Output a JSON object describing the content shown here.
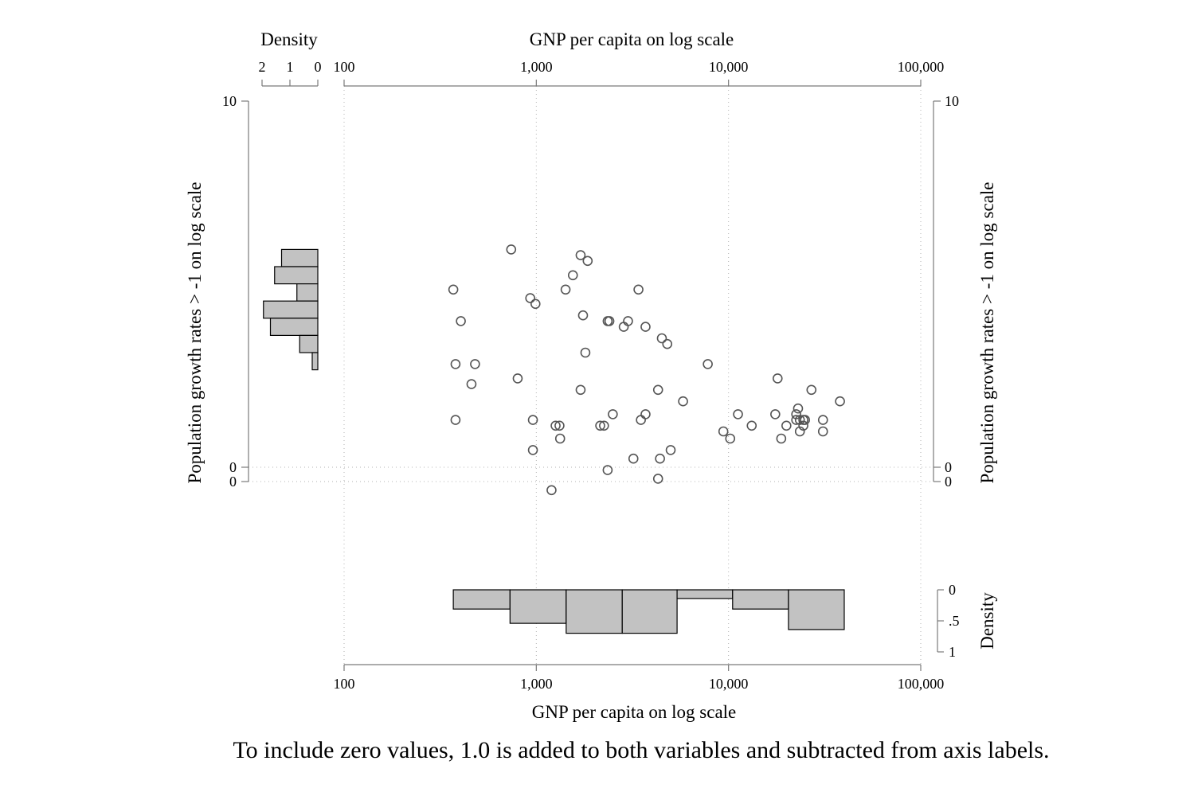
{
  "chart_data": {
    "type": "scatter",
    "x_scale": "log",
    "xlabel": "GNP per capita on log scale",
    "ylabel": "Population growth rates > -1 on log scale",
    "xlim": [
      100,
      100000
    ],
    "x_ticks": [
      100,
      1000,
      10000,
      100000
    ],
    "x_tick_labels": [
      "100",
      "1,000",
      "10,000",
      "100,000"
    ],
    "y_tick_labels": [
      "10",
      "0",
      "0"
    ],
    "points": [
      {
        "x": 740,
        "y": 7.6
      },
      {
        "x": 1700,
        "y": 7.4
      },
      {
        "x": 1850,
        "y": 7.2
      },
      {
        "x": 1550,
        "y": 6.7
      },
      {
        "x": 1420,
        "y": 6.2
      },
      {
        "x": 3400,
        "y": 6.2
      },
      {
        "x": 370,
        "y": 6.2
      },
      {
        "x": 930,
        "y": 5.9
      },
      {
        "x": 990,
        "y": 5.7
      },
      {
        "x": 1750,
        "y": 5.3
      },
      {
        "x": 405,
        "y": 5.1
      },
      {
        "x": 2350,
        "y": 5.1
      },
      {
        "x": 2400,
        "y": 5.1
      },
      {
        "x": 3000,
        "y": 5.1
      },
      {
        "x": 2850,
        "y": 4.9
      },
      {
        "x": 3700,
        "y": 4.9
      },
      {
        "x": 4500,
        "y": 4.5
      },
      {
        "x": 4800,
        "y": 4.3
      },
      {
        "x": 1800,
        "y": 4.0
      },
      {
        "x": 380,
        "y": 3.6
      },
      {
        "x": 480,
        "y": 3.6
      },
      {
        "x": 7800,
        "y": 3.6
      },
      {
        "x": 800,
        "y": 3.1
      },
      {
        "x": 18000,
        "y": 3.1
      },
      {
        "x": 460,
        "y": 2.9
      },
      {
        "x": 1700,
        "y": 2.7
      },
      {
        "x": 4300,
        "y": 2.7
      },
      {
        "x": 27000,
        "y": 2.7
      },
      {
        "x": 5800,
        "y": 2.3
      },
      {
        "x": 38000,
        "y": 2.3
      },
      {
        "x": 23000,
        "y": 2.05
      },
      {
        "x": 2500,
        "y": 1.85
      },
      {
        "x": 3700,
        "y": 1.85
      },
      {
        "x": 11200,
        "y": 1.85
      },
      {
        "x": 17500,
        "y": 1.85
      },
      {
        "x": 22500,
        "y": 1.85
      },
      {
        "x": 380,
        "y": 1.65
      },
      {
        "x": 960,
        "y": 1.65
      },
      {
        "x": 3500,
        "y": 1.65
      },
      {
        "x": 22500,
        "y": 1.65
      },
      {
        "x": 23500,
        "y": 1.65
      },
      {
        "x": 24500,
        "y": 1.65
      },
      {
        "x": 25000,
        "y": 1.65
      },
      {
        "x": 31000,
        "y": 1.65
      },
      {
        "x": 1260,
        "y": 1.45
      },
      {
        "x": 1320,
        "y": 1.45
      },
      {
        "x": 2150,
        "y": 1.45
      },
      {
        "x": 2250,
        "y": 1.45
      },
      {
        "x": 13200,
        "y": 1.45
      },
      {
        "x": 20000,
        "y": 1.45
      },
      {
        "x": 24500,
        "y": 1.45
      },
      {
        "x": 9400,
        "y": 1.25
      },
      {
        "x": 23500,
        "y": 1.25
      },
      {
        "x": 31000,
        "y": 1.25
      },
      {
        "x": 1330,
        "y": 1.0
      },
      {
        "x": 10200,
        "y": 1.0
      },
      {
        "x": 18800,
        "y": 1.0
      },
      {
        "x": 960,
        "y": 0.6
      },
      {
        "x": 5000,
        "y": 0.6
      },
      {
        "x": 3200,
        "y": 0.3
      },
      {
        "x": 4400,
        "y": 0.3
      },
      {
        "x": 2350,
        "y": -0.1
      },
      {
        "x": 4300,
        "y": -0.4
      },
      {
        "x": 1200,
        "y": -0.8
      }
    ],
    "x_histogram": {
      "density_label": "Density",
      "density_ticks": [
        "0",
        ".5",
        "1"
      ],
      "bin_edges_gnp": [
        370,
        730,
        1430,
        2800,
        5400,
        10500,
        20500,
        40000
      ],
      "density": [
        0.31,
        0.54,
        0.7,
        0.7,
        0.14,
        0.31,
        0.64
      ]
    },
    "y_histogram": {
      "density_label": "Density",
      "density_ticks": [
        "2",
        "1",
        "0"
      ],
      "bin_edges_y": [
        7.6,
        7.0,
        6.4,
        5.8,
        5.2,
        4.6,
        4.0,
        3.4
      ],
      "density": [
        1.3,
        1.55,
        0.75,
        1.95,
        1.7,
        0.65,
        0.2
      ]
    },
    "grid": true,
    "note": "To include zero values, 1.0 is added to both variables and subtracted from axis labels."
  }
}
